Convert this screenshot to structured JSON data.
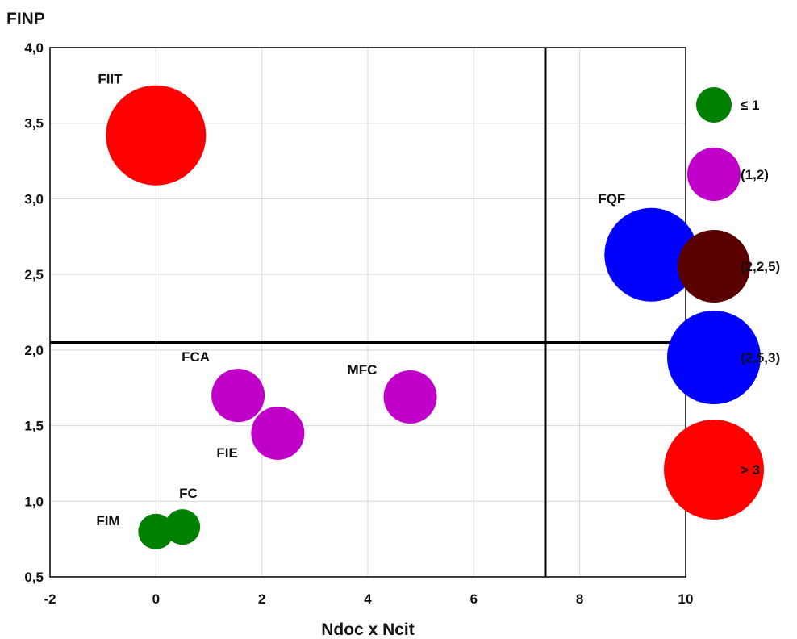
{
  "chart_data": {
    "type": "scatter",
    "subtype": "bubble",
    "title": "",
    "xlabel": "Ndoc x Ncit",
    "ylabel": "FINP",
    "xlim": [
      -2,
      10
    ],
    "ylim": [
      0.5,
      4.0
    ],
    "x_ticks": [
      "-2",
      "0",
      "2",
      "4",
      "6",
      "8",
      "10"
    ],
    "y_ticks": [
      "0,5",
      "1,0",
      "1,5",
      "2,0",
      "2,5",
      "3,0",
      "3,5",
      "4,0"
    ],
    "grid": true,
    "reference_lines": {
      "vertical_x": 7.35,
      "horizontal_y": 2.05
    },
    "points": [
      {
        "label": "FIIT",
        "x": 0.0,
        "y": 3.42,
        "class": "> 3",
        "color": "#ff0000"
      },
      {
        "label": "FQF",
        "x": 9.35,
        "y": 2.63,
        "class": "(2,5,3)",
        "color": "#0000ff"
      },
      {
        "label": "FCA",
        "x": 1.55,
        "y": 1.7,
        "class": "(1,2)",
        "color": "#c000c8"
      },
      {
        "label": "FIE",
        "x": 2.3,
        "y": 1.45,
        "class": "(1,2)",
        "color": "#c000c8"
      },
      {
        "label": "MFC",
        "x": 4.8,
        "y": 1.69,
        "class": "(1,2)",
        "color": "#c000c8"
      },
      {
        "label": "FC",
        "x": 0.5,
        "y": 0.83,
        "class": "≤ 1",
        "color": "#008000"
      },
      {
        "label": "FIM",
        "x": 0.0,
        "y": 0.8,
        "class": "≤ 1",
        "color": "#008000"
      }
    ],
    "legend": {
      "placement": "right",
      "entries": [
        {
          "label": "≤ 1",
          "color": "#008000",
          "size": 1
        },
        {
          "label": "(1,2)",
          "color": "#c000c8",
          "size": 2
        },
        {
          "label": "(2,2,5)",
          "color": "#5a0000",
          "size": 3
        },
        {
          "label": "(2,5,3)",
          "color": "#0000ff",
          "size": 4
        },
        {
          "label": "> 3",
          "color": "#ff0000",
          "size": 5
        }
      ]
    }
  }
}
